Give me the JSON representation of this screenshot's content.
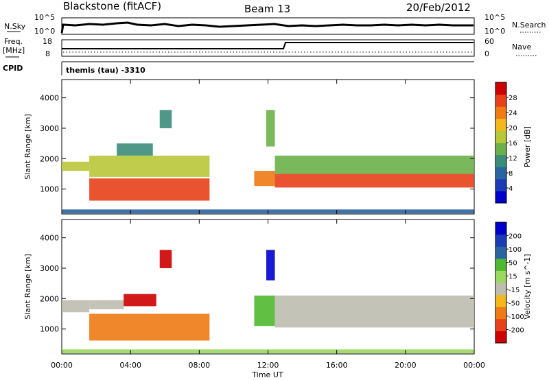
{
  "header": {
    "station": "Blackstone (fitACF)",
    "beam": "Beam 13",
    "date": "20/Feb/2012"
  },
  "summary_panel": {
    "left_label_top": "N.Sky",
    "left_ticks_top": [
      "10^5",
      "10^0"
    ],
    "right_label_top": "N.Search",
    "right_ticks_top": [
      "10^5",
      "10^0"
    ],
    "left_label_mid_1": "Freq.",
    "left_label_mid_2": "[MHz]",
    "left_ticks_mid": [
      "18",
      "8"
    ],
    "right_label_mid": "Nave",
    "right_ticks_mid": [
      "60",
      "0"
    ],
    "cpid_label": "CPID",
    "cpid_text": "themis (tau) -3310"
  },
  "chart_data": [
    {
      "type": "heatmap",
      "title": "",
      "xlabel": "",
      "ylabel": "Slant Range [km]",
      "x_ticks": [
        "00:00",
        "04:00",
        "08:00",
        "12:00",
        "16:00",
        "20:00",
        "00:00"
      ],
      "y_ticks": [
        "1000",
        "2000",
        "3000",
        "4000"
      ],
      "xlim_hours": [
        0,
        24
      ],
      "ylim_km": [
        180,
        4600
      ],
      "colorbar": {
        "label": "Power [dB]",
        "ticks": [
          "28",
          "24",
          "20",
          "16",
          "12",
          "8",
          "4"
        ],
        "colors": [
          "#0000cc",
          "#1a3cb4",
          "#2b65a0",
          "#3c8c7a",
          "#6cb04a",
          "#b9c838",
          "#f2b81c",
          "#f07a14",
          "#e8401a",
          "#cc0000"
        ]
      },
      "bands": [
        {
          "from_h": 0.0,
          "to_h": 1.6,
          "lo_km": 1600,
          "hi_km": 1900,
          "level": 0.55
        },
        {
          "from_h": 1.6,
          "to_h": 8.6,
          "lo_km": 620,
          "hi_km": 1350,
          "level": 0.85
        },
        {
          "from_h": 1.6,
          "to_h": 8.6,
          "lo_km": 1400,
          "hi_km": 2100,
          "level": 0.5
        },
        {
          "from_h": 3.2,
          "to_h": 5.3,
          "lo_km": 2100,
          "hi_km": 2500,
          "level": 0.3
        },
        {
          "from_h": 5.7,
          "to_h": 6.4,
          "lo_km": 3000,
          "hi_km": 3600,
          "level": 0.35
        },
        {
          "from_h": 11.2,
          "to_h": 12.4,
          "lo_km": 1100,
          "hi_km": 1600,
          "level": 0.75
        },
        {
          "from_h": 11.9,
          "to_h": 12.4,
          "lo_km": 2400,
          "hi_km": 3600,
          "level": 0.4
        },
        {
          "from_h": 12.4,
          "to_h": 24.0,
          "lo_km": 1050,
          "hi_km": 1500,
          "level": 0.88
        },
        {
          "from_h": 12.4,
          "to_h": 24.0,
          "lo_km": 1500,
          "hi_km": 2100,
          "level": 0.45
        },
        {
          "from_h": 0.0,
          "to_h": 24.0,
          "lo_km": 200,
          "hi_km": 330,
          "level": 0.25
        }
      ]
    },
    {
      "type": "heatmap",
      "title": "",
      "xlabel": "Time UT",
      "ylabel": "Slant Range [km]",
      "x_ticks": [
        "00:00",
        "04:00",
        "08:00",
        "12:00",
        "16:00",
        "20:00",
        "00:00"
      ],
      "y_ticks": [
        "1000",
        "2000",
        "3000",
        "4000"
      ],
      "xlim_hours": [
        0,
        24
      ],
      "ylim_km": [
        180,
        4600
      ],
      "colorbar": {
        "label": "Velocity [m s^-1]",
        "ticks": [
          "200",
          "100",
          "50",
          "15",
          "-15",
          "-50",
          "-100",
          "-200"
        ],
        "colors": [
          "#cc0000",
          "#e8401a",
          "#f07a14",
          "#f2b81c",
          "#bdbdb0",
          "#9ad860",
          "#50b830",
          "#2b65a0",
          "#1a3cb4",
          "#0000cc"
        ]
      },
      "bands": [
        {
          "from_h": 0.0,
          "to_h": 1.6,
          "lo_km": 1550,
          "hi_km": 1950,
          "level": 0.4
        },
        {
          "from_h": 1.6,
          "to_h": 3.6,
          "lo_km": 1650,
          "hi_km": 1950,
          "level": 0.4
        },
        {
          "from_h": 3.6,
          "to_h": 5.5,
          "lo_km": 1750,
          "hi_km": 2150,
          "level": 0.05
        },
        {
          "from_h": 1.6,
          "to_h": 8.6,
          "lo_km": 620,
          "hi_km": 1500,
          "level": 0.2
        },
        {
          "from_h": 5.7,
          "to_h": 6.4,
          "lo_km": 3000,
          "hi_km": 3600,
          "level": 0.05
        },
        {
          "from_h": 11.2,
          "to_h": 12.4,
          "lo_km": 1100,
          "hi_km": 2100,
          "level": 0.62
        },
        {
          "from_h": 11.9,
          "to_h": 12.4,
          "lo_km": 2600,
          "hi_km": 3600,
          "level": 0.95
        },
        {
          "from_h": 12.4,
          "to_h": 24.0,
          "lo_km": 1050,
          "hi_km": 2100,
          "level": 0.4
        },
        {
          "from_h": 0.0,
          "to_h": 24.0,
          "lo_km": 200,
          "hi_km": 330,
          "level": 0.5
        }
      ]
    }
  ]
}
